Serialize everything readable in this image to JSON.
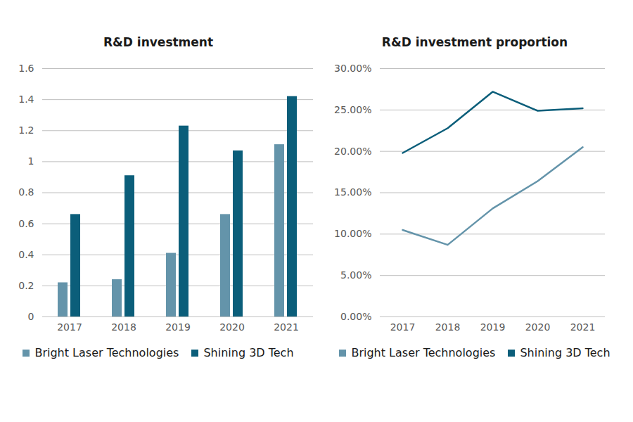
{
  "chart_data": [
    {
      "type": "bar",
      "title": "R&D investment",
      "categories": [
        "2017",
        "2018",
        "2019",
        "2020",
        "2021"
      ],
      "series": [
        {
          "name": "Bright Laser Technologies",
          "color": "#6494aa",
          "values": [
            0.22,
            0.24,
            0.41,
            0.66,
            1.11
          ]
        },
        {
          "name": "Shining 3D Tech",
          "color": "#0b5e7a",
          "values": [
            0.66,
            0.91,
            1.23,
            1.07,
            1.42
          ]
        }
      ],
      "ylim": [
        0,
        1.6
      ],
      "yticks": [
        0,
        0.2,
        0.4,
        0.6,
        0.8,
        1,
        1.2,
        1.4,
        1.6
      ],
      "grid": true,
      "legend": "bottom"
    },
    {
      "type": "line",
      "title": "R&D investment proportion",
      "categories": [
        "2017",
        "2018",
        "2019",
        "2020",
        "2021"
      ],
      "series": [
        {
          "name": "Bright Laser Technologies",
          "color": "#6494aa",
          "values": [
            10.5,
            8.7,
            13.1,
            16.4,
            20.5
          ]
        },
        {
          "name": "Shining 3D Tech",
          "color": "#0b5e7a",
          "values": [
            19.8,
            22.8,
            27.2,
            24.9,
            25.2
          ]
        }
      ],
      "ylim": [
        0,
        30
      ],
      "yticks": [
        {
          "value": 0,
          "label": "0.00%"
        },
        {
          "value": 5,
          "label": "5.00%"
        },
        {
          "value": 10,
          "label": "10.00%"
        },
        {
          "value": 15,
          "label": "15.00%"
        },
        {
          "value": 20,
          "label": "20.00%"
        },
        {
          "value": 25,
          "label": "25.00%"
        },
        {
          "value": 30,
          "label": "30.00%"
        }
      ],
      "grid": true,
      "legend": "bottom"
    }
  ]
}
